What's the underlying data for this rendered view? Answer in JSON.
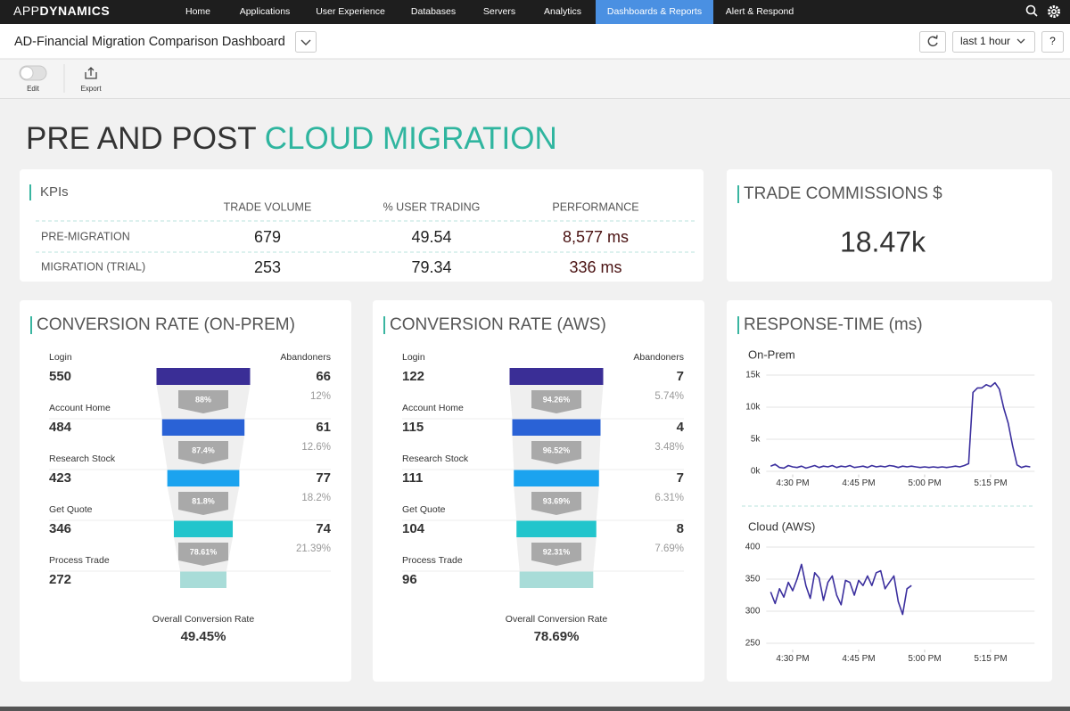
{
  "nav": {
    "brand_light": "APP",
    "brand_bold": "DYNAMICS",
    "items": [
      "Home",
      "Applications",
      "User Experience",
      "Databases",
      "Servers",
      "Analytics",
      "Dashboards & Reports",
      "Alert & Respond"
    ],
    "active_item": 6
  },
  "toolbar": {
    "dashboard_name": "AD-Financial Migration Comparison Dashboard",
    "time_range": "last 1 hour",
    "help": "?",
    "actions": [
      "Edit",
      "Export"
    ]
  },
  "heading": {
    "plain": "PRE AND POST",
    "highlight": "CLOUD MIGRATION"
  },
  "kpis": {
    "title": "KPIs",
    "columns": [
      "TRADE VOLUME",
      "% USER TRADING",
      "PERFORMANCE"
    ],
    "rows": [
      {
        "label": "PRE-MIGRATION",
        "cells": [
          "679",
          "49.54",
          "8,577 ms"
        ]
      },
      {
        "label": "MIGRATION (TRIAL)",
        "cells": [
          "253",
          "79.34",
          "336 ms"
        ]
      }
    ]
  },
  "commissions": {
    "title": "TRADE COMMISSIONS $",
    "value": "18.47k"
  },
  "funnels": [
    {
      "title": "CONVERSION RATE (ON-PREM)",
      "abandoners_header": "Abandoners",
      "stages": [
        {
          "name": "Login",
          "count": 550
        },
        {
          "name": "Account Home",
          "count": 484
        },
        {
          "name": "Research Stock",
          "count": 423
        },
        {
          "name": "Get Quote",
          "count": 346
        },
        {
          "name": "Process Trade",
          "count": 272
        }
      ],
      "transitions": [
        {
          "abandoners": 66,
          "abandon_rate": "12%",
          "conversion": "88%"
        },
        {
          "abandoners": 61,
          "abandon_rate": "12.6%",
          "conversion": "87.4%"
        },
        {
          "abandoners": 77,
          "abandon_rate": "18.2%",
          "conversion": "81.8%"
        },
        {
          "abandoners": 74,
          "abandon_rate": "21.39%",
          "conversion": "78.61%"
        }
      ],
      "overall_label": "Overall Conversion Rate",
      "overall": "49.45%"
    },
    {
      "title": "CONVERSION RATE (AWS)",
      "abandoners_header": "Abandoners",
      "stages": [
        {
          "name": "Login",
          "count": 122
        },
        {
          "name": "Account Home",
          "count": 115
        },
        {
          "name": "Research Stock",
          "count": 111
        },
        {
          "name": "Get Quote",
          "count": 104
        },
        {
          "name": "Process Trade",
          "count": 96
        }
      ],
      "transitions": [
        {
          "abandoners": 7,
          "abandon_rate": "5.74%",
          "conversion": "94.26%"
        },
        {
          "abandoners": 4,
          "abandon_rate": "3.48%",
          "conversion": "96.52%"
        },
        {
          "abandoners": 7,
          "abandon_rate": "6.31%",
          "conversion": "93.69%"
        },
        {
          "abandoners": 8,
          "abandon_rate": "7.69%",
          "conversion": "92.31%"
        }
      ],
      "overall_label": "Overall Conversion Rate",
      "overall": "78.69%"
    }
  ],
  "response_time": {
    "title": "RESPONSE-TIME (ms)"
  },
  "chart_data": [
    {
      "type": "line",
      "title": "On-Prem",
      "color": "#3b2f9e",
      "grid": true,
      "x": [
        "4:25 PM",
        "4:26 PM",
        "4:27 PM",
        "4:28 PM",
        "4:29 PM",
        "4:30 PM",
        "4:31 PM",
        "4:32 PM",
        "4:33 PM",
        "4:34 PM",
        "4:35 PM",
        "4:36 PM",
        "4:37 PM",
        "4:38 PM",
        "4:39 PM",
        "4:40 PM",
        "4:41 PM",
        "4:42 PM",
        "4:43 PM",
        "4:44 PM",
        "4:45 PM",
        "4:46 PM",
        "4:47 PM",
        "4:48 PM",
        "4:49 PM",
        "4:50 PM",
        "4:51 PM",
        "4:52 PM",
        "4:53 PM",
        "4:54 PM",
        "4:55 PM",
        "4:56 PM",
        "4:57 PM",
        "4:58 PM",
        "4:59 PM",
        "5:00 PM",
        "5:01 PM",
        "5:02 PM",
        "5:03 PM",
        "5:04 PM",
        "5:05 PM",
        "5:06 PM",
        "5:07 PM",
        "5:08 PM",
        "5:09 PM",
        "5:10 PM",
        "5:11 PM",
        "5:12 PM",
        "5:13 PM",
        "5:14 PM",
        "5:15 PM",
        "5:16 PM",
        "5:17 PM",
        "5:18 PM",
        "5:19 PM",
        "5:20 PM",
        "5:21 PM",
        "5:22 PM",
        "5:23 PM",
        "5:24 PM"
      ],
      "values": [
        800,
        1100,
        600,
        500,
        900,
        700,
        600,
        800,
        500,
        700,
        900,
        600,
        800,
        700,
        900,
        600,
        800,
        700,
        900,
        600,
        700,
        800,
        600,
        900,
        700,
        800,
        700,
        900,
        800,
        600,
        800,
        700,
        800,
        700,
        600,
        700,
        600,
        700,
        600,
        700,
        600,
        700,
        800,
        700,
        900,
        1200,
        12300,
        13000,
        13000,
        13500,
        13200,
        13800,
        12800,
        9800,
        7500,
        4000,
        1000,
        600,
        800,
        700
      ],
      "xlim": [
        "4:24 PM",
        "5:25 PM"
      ],
      "xticks": [
        "4:30 PM",
        "4:45 PM",
        "5:00 PM",
        "5:15 PM"
      ],
      "ylim": [
        -500,
        15800
      ],
      "yticks": [
        {
          "value": 0,
          "label": "0k"
        },
        {
          "value": 5000,
          "label": "5k"
        },
        {
          "value": 10000,
          "label": "10k"
        },
        {
          "value": 15000,
          "label": "15k"
        }
      ]
    },
    {
      "type": "line",
      "title": "Cloud (AWS)",
      "color": "#3b2f9e",
      "grid": true,
      "x": [
        "4:25 PM",
        "4:26 PM",
        "4:27 PM",
        "4:28 PM",
        "4:29 PM",
        "4:30 PM",
        "4:31 PM",
        "4:32 PM",
        "4:33 PM",
        "4:34 PM",
        "4:35 PM",
        "4:36 PM",
        "4:37 PM",
        "4:38 PM",
        "4:39 PM",
        "4:40 PM",
        "4:41 PM",
        "4:42 PM",
        "4:43 PM",
        "4:44 PM",
        "4:45 PM",
        "4:46 PM",
        "4:47 PM",
        "4:48 PM",
        "4:49 PM",
        "4:50 PM",
        "4:51 PM",
        "4:52 PM",
        "4:53 PM",
        "4:54 PM",
        "4:55 PM",
        "4:56 PM",
        "4:57 PM"
      ],
      "values": [
        330,
        312,
        335,
        322,
        345,
        332,
        350,
        373,
        340,
        320,
        360,
        352,
        317,
        345,
        355,
        325,
        310,
        348,
        345,
        325,
        348,
        340,
        355,
        340,
        360,
        363,
        335,
        345,
        355,
        315,
        295,
        335,
        340
      ],
      "xlim": [
        "4:24 PM",
        "5:25 PM"
      ],
      "xticks": [
        "4:30 PM",
        "4:45 PM",
        "5:00 PM",
        "5:15 PM"
      ],
      "ylim": [
        240,
        410
      ],
      "yticks": [
        250,
        300,
        350,
        400
      ]
    }
  ]
}
